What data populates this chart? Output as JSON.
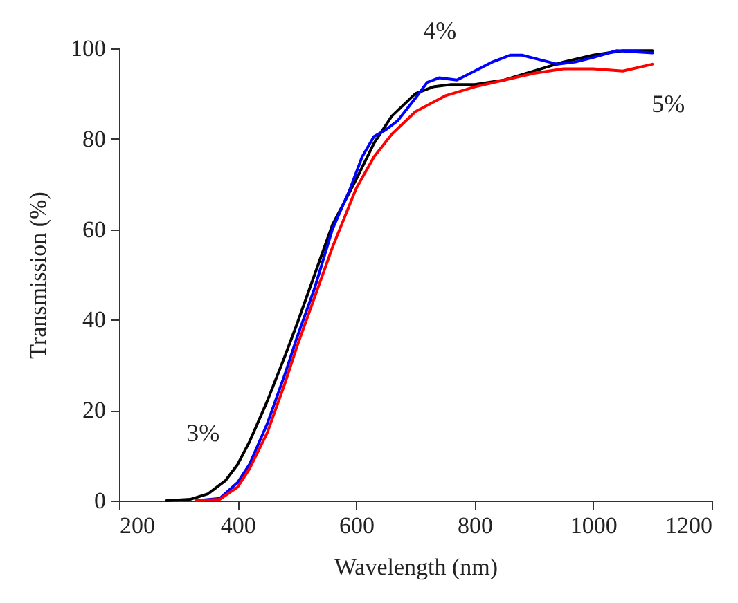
{
  "chart_data": {
    "type": "line",
    "xlabel": "Wavelength  (nm)",
    "ylabel": "Transmission  (%)",
    "xlim": [
      200,
      1200
    ],
    "xticks": [
      200,
      400,
      600,
      800,
      1000,
      1200
    ],
    "ylim": [
      0,
      100
    ],
    "yticks": [
      0,
      20,
      40,
      60,
      80,
      100
    ],
    "grid": false,
    "series": [
      {
        "color": "#000000",
        "x": [
          280,
          320,
          350,
          380,
          400,
          420,
          450,
          480,
          500,
          530,
          560,
          600,
          630,
          660,
          700,
          730,
          760,
          800,
          850,
          900,
          950,
          1000,
          1050,
          1100
        ],
        "values": [
          0,
          0.3,
          1.5,
          4.5,
          8,
          13,
          22,
          32,
          39,
          50,
          61,
          71,
          79,
          85,
          90,
          91.5,
          92,
          92,
          93,
          95,
          97,
          98.5,
          99.5,
          99.5
        ]
      },
      {
        "color": "#0000ff",
        "x": [
          330,
          370,
          400,
          420,
          450,
          480,
          500,
          530,
          560,
          590,
          610,
          630,
          650,
          670,
          700,
          720,
          740,
          770,
          800,
          830,
          860,
          880,
          910,
          940,
          970,
          1000,
          1040,
          1100
        ],
        "values": [
          0,
          0.5,
          4,
          8,
          17,
          28,
          36,
          47,
          60,
          69,
          76,
          80.5,
          82,
          84,
          89,
          92.5,
          93.5,
          93,
          95,
          97,
          98.5,
          98.5,
          97.5,
          96.5,
          97,
          98,
          99.5,
          99
        ]
      },
      {
        "color": "#ff0000",
        "x": [
          330,
          370,
          400,
          420,
          450,
          480,
          500,
          530,
          560,
          600,
          630,
          660,
          700,
          750,
          800,
          850,
          900,
          950,
          1000,
          1050,
          1100
        ],
        "values": [
          0,
          0.3,
          3,
          7,
          15,
          26,
          34,
          45,
          56,
          69,
          76,
          81,
          86,
          89.5,
          91.5,
          93,
          94.5,
          95.5,
          95.5,
          95,
          96.5
        ]
      }
    ],
    "annotations": [
      {
        "text": "3%",
        "x": 400,
        "y": 8
      },
      {
        "text": "4%",
        "x": 830,
        "y": 97
      },
      {
        "text": "5%",
        "x": 1080,
        "y": 96
      }
    ]
  }
}
